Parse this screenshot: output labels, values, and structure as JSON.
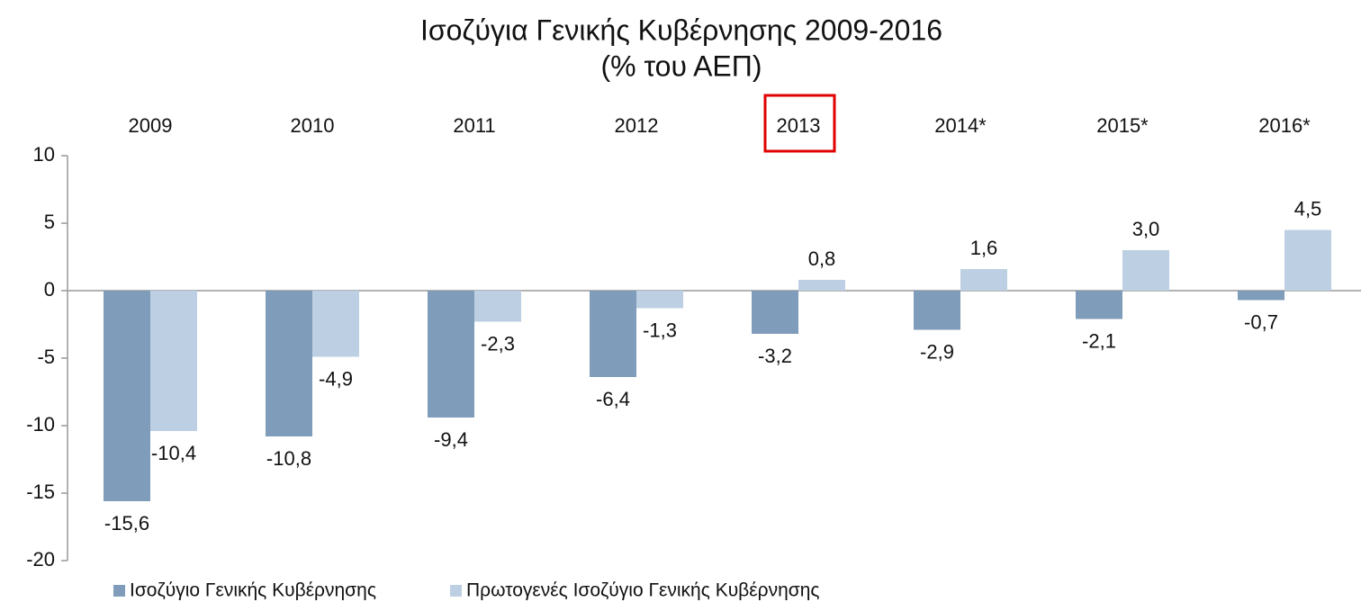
{
  "chart_data": {
    "type": "bar",
    "title": "Ισοζύγια Γενικής Κυβέρνησης 2009-2016",
    "subtitle": "(% του ΑΕΠ)",
    "categories": [
      "2009",
      "2010",
      "2011",
      "2012",
      "2013",
      "2014*",
      "2015*",
      "2016*"
    ],
    "series": [
      {
        "name": "Ισοζύγιο Γενικής Κυβέρνησης",
        "color": "#7f9dba",
        "values": [
          -15.6,
          -10.8,
          -9.4,
          -6.4,
          -3.2,
          -2.9,
          -2.1,
          -0.7
        ],
        "value_labels": [
          "-15,6",
          "-10,8",
          "-9,4",
          "-6,4",
          "-3,2",
          "-2,9",
          "-2,1",
          "-0,7"
        ]
      },
      {
        "name": "Πρωτογενές Ισοζύγιο Γενικής Κυβέρνησης",
        "color": "#bdd0e3",
        "values": [
          -10.4,
          -4.9,
          -2.3,
          -1.3,
          0.8,
          1.6,
          3.0,
          4.5
        ],
        "value_labels": [
          "-10,4",
          "-4,9",
          "-2,3",
          "-1,3",
          "0,8",
          "1,6",
          "3,0",
          "4,5"
        ]
      }
    ],
    "ylim": [
      -20,
      10
    ],
    "yticks": [
      10,
      5,
      0,
      -5,
      -10,
      -15,
      -20
    ]
  }
}
